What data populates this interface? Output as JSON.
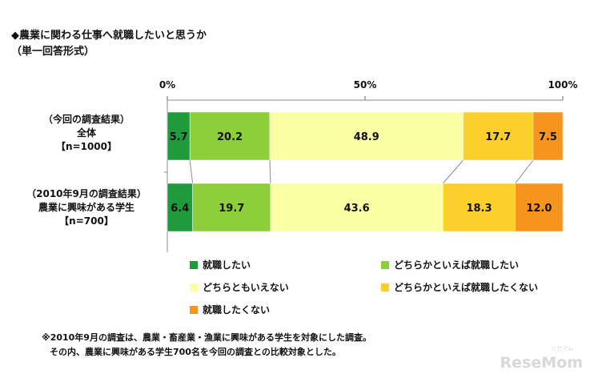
{
  "title": "◆農業に関わる仕事へ就職したいと思うか",
  "subtitle": "（単一回答形式）",
  "chart_data": {
    "type": "bar",
    "orientation": "horizontal",
    "stacked": true,
    "percent": true,
    "xlim": [
      0,
      100
    ],
    "ticks": [
      {
        "value": 0,
        "label": "0%"
      },
      {
        "value": 50,
        "label": "50%"
      },
      {
        "value": 100,
        "label": "100%"
      }
    ],
    "categories": [
      {
        "line1": "（今回の調査結果）",
        "line2": "全体",
        "line3": "【n=1000】"
      },
      {
        "line1": "（2010年9月の調査結果）",
        "line2": "農業に興味がある学生",
        "line3": "【n=700】"
      }
    ],
    "series": [
      {
        "name": "就職したい",
        "color": "#1f9a3c",
        "values": [
          5.7,
          6.4
        ]
      },
      {
        "name": "どちらかといえば就職したい",
        "color": "#8ccf3a",
        "values": [
          20.2,
          19.7
        ]
      },
      {
        "name": "どちらともいえない",
        "color": "#fbffa3",
        "values": [
          48.9,
          43.6
        ]
      },
      {
        "name": "どちらかといえば就職したくない",
        "color": "#fbcf2a",
        "values": [
          17.7,
          18.3
        ]
      },
      {
        "name": "就職したくない",
        "color": "#f6941e",
        "values": [
          7.5,
          12.0
        ]
      }
    ],
    "value_labels": [
      [
        "5.7",
        "20.2",
        "48.9",
        "17.7",
        "7.5"
      ],
      [
        "6.4",
        "19.7",
        "43.6",
        "18.3",
        "12.0"
      ]
    ],
    "grid": false,
    "legend": "bottom"
  },
  "footnotes": [
    "※2010年9月の調査は、農業・畜産業・漁業に興味がある学生を対象にした調査。",
    "その内、農業に興味がある学生700名を今回の調査との比較対象とした。"
  ],
  "watermark": {
    "text": "ReseMom",
    "small": "リセマム"
  }
}
